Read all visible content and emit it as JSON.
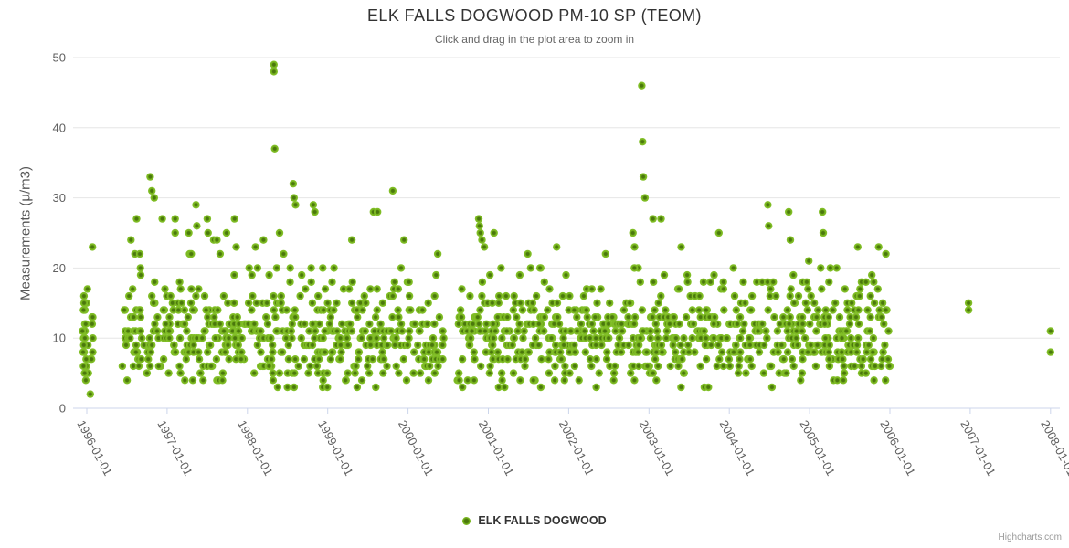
{
  "chart": {
    "credits": "Highcharts.com"
  },
  "chart_data": {
    "type": "scatter",
    "title": "ELK FALLS DOGWOOD PM-10 SP (TEOM)",
    "subtitle": "Click and drag in the plot area to zoom in",
    "xlabel": "",
    "ylabel": "Measurements (µ/m3)",
    "ylim": [
      0,
      50
    ],
    "yticks": [
      0,
      10,
      20,
      30,
      40,
      50
    ],
    "xticks": [
      "1996-01-01",
      "1997-01-01",
      "1998-01-01",
      "1999-01-01",
      "2000-01-01",
      "2001-01-01",
      "2002-01-01",
      "2003-01-01",
      "2004-01-01",
      "2005-01-01",
      "2006-01-01",
      "2007-01-01",
      "2008-01-01"
    ],
    "grid": "horizontal-only",
    "legend_position": "bottom-center",
    "colors": {
      "marker_edge": "#85c32c",
      "marker_mid": "#79b51f",
      "marker_center": "#4a780c",
      "gridline": "#e6e6e6",
      "axis_line": "#ccd6eb",
      "tick_label": "#606060",
      "title": "#333333",
      "subtitle": "#666666"
    },
    "series": [
      {
        "name": "ELK FALLS DOGWOOD",
        "marker_radius": 4.2,
        "description": "Daily PM-10 readings (integer µ/m3) from Jan 1996 through Dec 2005 plus isolated readings near Jan 2007 and Jan 2008; dense band mostly 4-21 µ/m3.",
        "high_points": [
          [
            1996.07,
            23
          ],
          [
            1996.55,
            24
          ],
          [
            1996.6,
            22
          ],
          [
            1996.62,
            27
          ],
          [
            1996.66,
            22
          ],
          [
            1996.79,
            33
          ],
          [
            1996.81,
            31
          ],
          [
            1996.84,
            30
          ],
          [
            1996.94,
            27
          ],
          [
            1997.1,
            27
          ],
          [
            1997.1,
            25
          ],
          [
            1997.27,
            25
          ],
          [
            1997.28,
            22
          ],
          [
            1997.3,
            22
          ],
          [
            1997.36,
            29
          ],
          [
            1997.37,
            26
          ],
          [
            1997.5,
            27
          ],
          [
            1997.51,
            25
          ],
          [
            1997.58,
            24
          ],
          [
            1997.62,
            24
          ],
          [
            1997.66,
            22
          ],
          [
            1997.74,
            25
          ],
          [
            1997.84,
            27
          ],
          [
            1997.86,
            23
          ],
          [
            1998.1,
            23
          ],
          [
            1998.2,
            24
          ],
          [
            1998.33,
            49
          ],
          [
            1998.33,
            48
          ],
          [
            1998.34,
            37
          ],
          [
            1998.4,
            25
          ],
          [
            1998.45,
            22
          ],
          [
            1998.57,
            32
          ],
          [
            1998.58,
            30
          ],
          [
            1998.6,
            29
          ],
          [
            1998.82,
            29
          ],
          [
            1998.84,
            28
          ],
          [
            1999.3,
            24
          ],
          [
            1999.57,
            28
          ],
          [
            1999.62,
            28
          ],
          [
            1999.81,
            31
          ],
          [
            1999.95,
            24
          ],
          [
            2000.37,
            22
          ],
          [
            2000.88,
            27
          ],
          [
            2000.89,
            26
          ],
          [
            2000.9,
            25
          ],
          [
            2000.92,
            24
          ],
          [
            2000.95,
            23
          ],
          [
            2001.07,
            25
          ],
          [
            2001.49,
            22
          ],
          [
            2001.85,
            23
          ],
          [
            2002.46,
            22
          ],
          [
            2002.8,
            25
          ],
          [
            2002.82,
            23
          ],
          [
            2002.91,
            46
          ],
          [
            2002.92,
            38
          ],
          [
            2002.93,
            33
          ],
          [
            2002.95,
            30
          ],
          [
            2003.05,
            27
          ],
          [
            2003.15,
            27
          ],
          [
            2003.4,
            23
          ],
          [
            2003.87,
            25
          ],
          [
            2004.48,
            29
          ],
          [
            2004.49,
            26
          ],
          [
            2004.74,
            28
          ],
          [
            2004.76,
            24
          ],
          [
            2005.16,
            28
          ],
          [
            2005.17,
            25
          ],
          [
            2005.6,
            23
          ],
          [
            2005.86,
            23
          ],
          [
            2005.95,
            22
          ]
        ],
        "isolated_points": [
          [
            2006.98,
            15
          ],
          [
            2006.98,
            14
          ],
          [
            2008.0,
            11
          ],
          [
            2008.0,
            8
          ]
        ],
        "initial_column": {
          "x_range": [
            1995.93,
            1996.08
          ],
          "values": [
            2,
            4,
            5,
            5,
            6,
            6,
            7,
            7,
            7,
            8,
            8,
            8,
            9,
            9,
            9,
            10,
            10,
            10,
            11,
            11,
            11,
            12,
            12,
            12,
            13,
            13,
            13,
            14,
            14,
            15,
            15,
            16,
            17
          ]
        },
        "dense_band": {
          "x_range": [
            1996.46,
            2006.02
          ],
          "gaps": [
            [
              2000.46,
              2000.6
            ]
          ],
          "x_step_years": 0.055,
          "points_per_step": [
            5,
            9
          ],
          "value_levels": [
            3,
            4,
            5,
            6,
            7,
            8,
            9,
            10,
            11,
            12,
            13,
            14,
            15,
            16,
            17,
            18,
            19,
            20,
            21
          ],
          "value_weights": [
            0.012,
            0.03,
            0.045,
            0.06,
            0.075,
            0.09,
            0.1,
            0.105,
            0.105,
            0.1,
            0.09,
            0.075,
            0.055,
            0.045,
            0.03,
            0.02,
            0.012,
            0.012,
            0.006
          ]
        },
        "rng_seed": 20
      }
    ]
  }
}
